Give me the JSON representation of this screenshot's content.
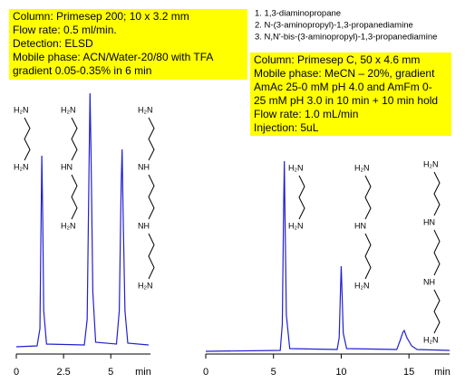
{
  "compounds": [
    "1.  1,3-diaminopropane",
    "2.  N-(3-aminopropyl)-1,3-propanediamine",
    "3.  N,N'-bis-(3-aminopropyl)-1,3-propanediamine"
  ],
  "chart_data": [
    {
      "type": "line",
      "color": "#2020d0",
      "xlabel": "min",
      "annotations": [
        "Column:  Primesep 200;  10 x 3.2 mm",
        "Flow rate:      0.5 ml/min.",
        "Detection:      ELSD",
        "Mobile phase: ACN/Water-20/80 with TFA",
        "gradient 0.05-0.35% in 6 min"
      ],
      "structure_labels": [
        [
          "H₂N",
          "H₂N"
        ],
        [
          "H₂N",
          "HN",
          "H₂N"
        ],
        [
          "H₂N",
          "NH",
          "NH",
          "H₂N"
        ]
      ],
      "x": [
        0,
        1.1,
        1.25,
        1.3,
        1.35,
        1.4,
        1.45,
        1.6,
        3.6,
        3.75,
        3.85,
        3.9,
        3.95,
        4.05,
        4.2,
        5.3,
        5.45,
        5.55,
        5.6,
        5.65,
        5.75,
        5.9,
        7.0
      ],
      "values": [
        0,
        1,
        20,
        120,
        211,
        140,
        40,
        3,
        2,
        30,
        200,
        280,
        220,
        60,
        5,
        3,
        40,
        180,
        218,
        150,
        40,
        4,
        2
      ],
      "xlim": [
        0,
        7.1
      ],
      "ylim": [
        0,
        300
      ],
      "xticks": [
        0,
        2.5,
        5
      ]
    },
    {
      "type": "line",
      "color": "#2020d0",
      "xlabel": "min",
      "annotations": [
        "Column: Primesep C, 50 x 4.6 mm",
        "Mobile phase: MeCN – 20%, gradient",
        "AmAc  25-0 mM pH 4.0 and AmFm 0-",
        "25 mM pH 3.0 in 10 min + 10 min hold",
        "Flow rate: 1.0 mL/min",
        "Injection: 5uL"
      ],
      "structure_labels": [
        [
          "H₂N",
          "H₂N"
        ],
        [
          "H₂N",
          "HN",
          "H₂N"
        ],
        [
          "H₂N",
          "HN",
          "NH",
          "H₂N"
        ]
      ],
      "x": [
        0,
        5.5,
        5.65,
        5.75,
        5.8,
        5.85,
        5.95,
        6.2,
        9.7,
        9.85,
        9.95,
        10.0,
        10.05,
        10.15,
        10.4,
        14.1,
        14.35,
        14.55,
        14.65,
        14.85,
        15.2,
        15.6,
        18
      ],
      "values": [
        0,
        1,
        30,
        160,
        210,
        150,
        40,
        3,
        2,
        15,
        70,
        94,
        70,
        20,
        3,
        2,
        12,
        21,
        23,
        15,
        6,
        2,
        1
      ],
      "xlim": [
        0,
        18
      ],
      "ylim": [
        0,
        300
      ],
      "xticks": [
        0,
        5,
        10,
        15
      ]
    }
  ]
}
